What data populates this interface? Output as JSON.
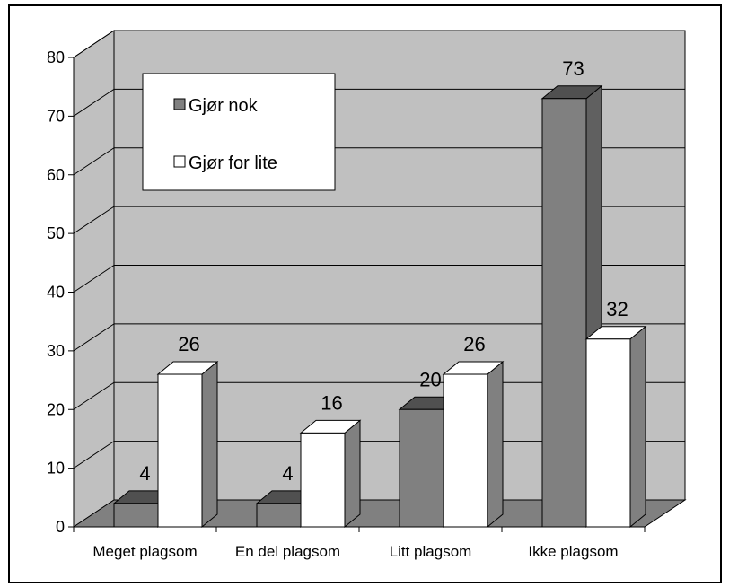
{
  "chart_data": {
    "type": "bar",
    "variant": "3d-clustered-column",
    "title": "",
    "xlabel": "",
    "ylabel": "",
    "ylim": [
      0,
      80
    ],
    "yticks": [
      0,
      10,
      20,
      30,
      40,
      50,
      60,
      70,
      80
    ],
    "grid": true,
    "legend_position": "top-left",
    "categories": [
      "Meget plagsom",
      "En del plagsom",
      "Litt plagsom",
      "Ikke plagsom"
    ],
    "series": [
      {
        "name": "Gjør nok",
        "values": [
          4,
          4,
          20,
          73
        ],
        "color": "#808080"
      },
      {
        "name": "Gjør for lite",
        "values": [
          26,
          16,
          26,
          32
        ],
        "color": "#ffffff"
      }
    ],
    "colors": {
      "wall": "#c0c0c0",
      "floor": "#808080",
      "grid": "#000000"
    }
  }
}
